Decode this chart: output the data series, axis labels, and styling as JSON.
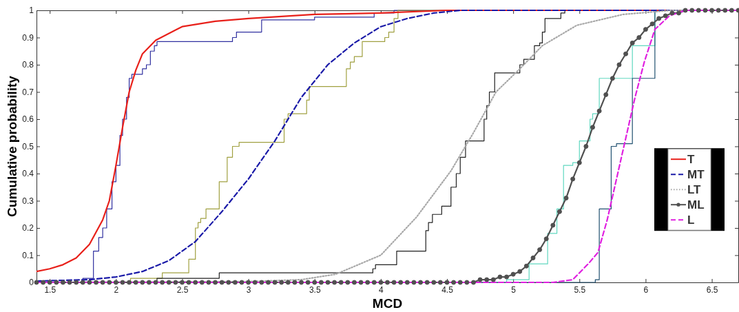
{
  "chart_data": {
    "type": "line",
    "xlabel": "MCD",
    "ylabel": "Cumulative probability",
    "xlim": [
      1.4,
      6.7
    ],
    "ylim": [
      0,
      1
    ],
    "xticks": [
      1.5,
      2,
      2.5,
      3,
      3.5,
      4,
      4.5,
      5,
      5.5,
      6,
      6.5
    ],
    "yticks": [
      0,
      0.1,
      0.2,
      0.3,
      0.4,
      0.5,
      0.6,
      0.7,
      0.8,
      0.9,
      1
    ],
    "legend": "right",
    "series": [
      {
        "type": "step",
        "color": "#3030a0",
        "x": [
          1.4,
          1.75,
          1.83,
          1.87,
          1.9,
          1.93,
          1.97,
          2.0,
          2.03,
          2.05,
          2.08,
          2.1,
          2.12,
          2.2,
          2.23,
          2.26,
          2.29,
          2.31,
          2.88,
          2.91,
          3.1,
          3.5,
          3.95,
          4.1,
          6.7
        ],
        "values": [
          0,
          0.015,
          0.115,
          0.165,
          0.2,
          0.27,
          0.37,
          0.43,
          0.54,
          0.6,
          0.68,
          0.75,
          0.765,
          0.785,
          0.8,
          0.85,
          0.87,
          0.885,
          0.9,
          0.92,
          0.965,
          0.975,
          0.99,
          1,
          1
        ]
      },
      {
        "type": "step",
        "color": "#a0a040",
        "x": [
          1.4,
          2.11,
          2.35,
          2.55,
          2.6,
          2.62,
          2.64,
          2.68,
          2.78,
          2.84,
          2.88,
          2.93,
          3.27,
          3.3,
          3.44,
          3.46,
          3.74,
          3.77,
          3.8,
          3.86,
          4.03,
          4.06,
          4.1,
          4.13,
          6.7
        ],
        "values": [
          0,
          0.015,
          0.035,
          0.085,
          0.2,
          0.22,
          0.235,
          0.27,
          0.37,
          0.46,
          0.5,
          0.515,
          0.6,
          0.62,
          0.67,
          0.72,
          0.785,
          0.81,
          0.83,
          0.885,
          0.9,
          0.92,
          0.97,
          1,
          1
        ]
      },
      {
        "type": "step",
        "color": "#202020",
        "x": [
          1.4,
          2.31,
          2.78,
          3.94,
          3.96,
          4.12,
          4.34,
          4.36,
          4.39,
          4.46,
          4.53,
          4.57,
          4.6,
          4.64,
          4.78,
          4.8,
          4.82,
          4.86,
          5.05,
          5.08,
          5.16,
          5.2,
          5.22,
          5.24,
          5.36,
          5.39,
          6.7
        ],
        "values": [
          0,
          0.015,
          0.035,
          0.05,
          0.065,
          0.115,
          0.19,
          0.22,
          0.25,
          0.28,
          0.35,
          0.4,
          0.46,
          0.52,
          0.6,
          0.65,
          0.7,
          0.77,
          0.8,
          0.82,
          0.87,
          0.88,
          0.92,
          0.97,
          0.99,
          1,
          1
        ]
      },
      {
        "type": "step",
        "color": "#60d8c0",
        "x": [
          1.4,
          4.95,
          5.12,
          5.26,
          5.33,
          5.38,
          5.45,
          5.5,
          5.58,
          5.6,
          5.65,
          5.9,
          6.07,
          6.7
        ],
        "values": [
          0,
          0.01,
          0.068,
          0.18,
          0.27,
          0.43,
          0.44,
          0.52,
          0.6,
          0.62,
          0.75,
          0.87,
          1,
          1
        ]
      },
      {
        "type": "step",
        "color": "#205070",
        "x": [
          1.4,
          5.62,
          5.65,
          5.74,
          5.78,
          5.9,
          6.07,
          6.7
        ],
        "values": [
          0,
          0.01,
          0.27,
          0.5,
          0.51,
          0.75,
          1,
          1
        ]
      },
      {
        "type": "line",
        "name": "T",
        "color": "#e8201a",
        "line_style": "solid",
        "x": [
          1.4,
          1.5,
          1.6,
          1.7,
          1.8,
          1.9,
          1.95,
          2.0,
          2.05,
          2.1,
          2.15,
          2.2,
          2.3,
          2.5,
          2.75,
          3.0,
          3.5,
          4.0,
          4.5,
          6.7
        ],
        "values": [
          0.04,
          0.05,
          0.065,
          0.09,
          0.14,
          0.23,
          0.3,
          0.43,
          0.57,
          0.7,
          0.78,
          0.84,
          0.89,
          0.94,
          0.96,
          0.97,
          0.985,
          0.99,
          1,
          1
        ]
      },
      {
        "type": "line",
        "name": "MT",
        "color": "#1a1aa8",
        "line_style": "dashed",
        "x": [
          1.4,
          1.8,
          2.0,
          2.2,
          2.4,
          2.6,
          2.8,
          3.0,
          3.2,
          3.4,
          3.6,
          3.8,
          4.0,
          4.2,
          4.4,
          4.6,
          6.7
        ],
        "values": [
          0.005,
          0.01,
          0.02,
          0.04,
          0.08,
          0.15,
          0.26,
          0.38,
          0.52,
          0.68,
          0.8,
          0.88,
          0.94,
          0.97,
          0.99,
          1,
          1
        ]
      },
      {
        "type": "line",
        "name": "LT",
        "color": "#a8a8a8",
        "line_style": "dotted",
        "x": [
          1.4,
          3.0,
          3.4,
          3.66,
          4.0,
          4.27,
          4.53,
          4.7,
          4.87,
          5.05,
          5.22,
          5.48,
          5.83,
          6.2,
          6.7
        ],
        "values": [
          0,
          0.003,
          0.01,
          0.03,
          0.1,
          0.24,
          0.41,
          0.55,
          0.7,
          0.785,
          0.87,
          0.945,
          0.985,
          1,
          1
        ]
      },
      {
        "type": "line",
        "name": "ML",
        "color": "#505050",
        "line_style": "solid",
        "marker": "circle",
        "x": [
          1.4,
          1.45,
          1.5,
          1.55,
          1.6,
          1.65,
          1.7,
          1.75,
          1.8,
          1.85,
          1.9,
          1.95,
          2.0,
          2.05,
          2.1,
          2.15,
          2.2,
          2.25,
          2.3,
          2.35,
          2.4,
          2.45,
          2.5,
          2.55,
          2.6,
          2.65,
          2.7,
          2.75,
          2.8,
          2.85,
          2.9,
          2.95,
          3.0,
          3.05,
          3.1,
          3.15,
          3.2,
          3.25,
          3.3,
          3.35,
          3.4,
          3.45,
          3.5,
          3.55,
          3.6,
          3.65,
          3.7,
          3.75,
          3.8,
          3.85,
          3.9,
          3.95,
          4.0,
          4.05,
          4.1,
          4.15,
          4.2,
          4.25,
          4.3,
          4.35,
          4.4,
          4.45,
          4.5,
          4.55,
          4.6,
          4.65,
          4.7,
          4.75,
          4.8,
          4.85,
          4.9,
          4.95,
          5.0,
          5.05,
          5.1,
          5.15,
          5.2,
          5.25,
          5.3,
          5.35,
          5.4,
          5.45,
          5.5,
          5.55,
          5.6,
          5.65,
          5.7,
          5.75,
          5.8,
          5.85,
          5.9,
          5.95,
          6.0,
          6.05,
          6.1,
          6.15,
          6.2,
          6.25,
          6.3,
          6.35,
          6.4,
          6.45,
          6.5,
          6.55,
          6.6,
          6.65,
          6.7
        ],
        "values": [
          0,
          0,
          0,
          0,
          0,
          0,
          0,
          0,
          0,
          0,
          0,
          0,
          0,
          0,
          0,
          0,
          0,
          0,
          0,
          0,
          0,
          0,
          0,
          0,
          0,
          0,
          0,
          0,
          0,
          0,
          0,
          0,
          0,
          0,
          0,
          0,
          0,
          0,
          0,
          0,
          0,
          0,
          0,
          0,
          0,
          0,
          0,
          0,
          0,
          0,
          0,
          0,
          0,
          0,
          0,
          0,
          0,
          0,
          0,
          0,
          0,
          0,
          0,
          0,
          0,
          0,
          0,
          0.01,
          0.01,
          0.01,
          0.02,
          0.02,
          0.03,
          0.04,
          0.06,
          0.09,
          0.12,
          0.16,
          0.21,
          0.26,
          0.31,
          0.38,
          0.44,
          0.5,
          0.57,
          0.63,
          0.69,
          0.75,
          0.8,
          0.84,
          0.88,
          0.9,
          0.93,
          0.95,
          0.97,
          0.98,
          0.99,
          0.99,
          1,
          1,
          1,
          1,
          1,
          1,
          1,
          1,
          1
        ]
      },
      {
        "type": "line",
        "name": "L",
        "color": "#e020e0",
        "line_style": "dashed",
        "x": [
          1.4,
          5.3,
          5.45,
          5.57,
          5.64,
          5.71,
          5.78,
          5.85,
          5.92,
          5.99,
          6.07,
          6.18,
          6.3,
          6.7
        ],
        "values": [
          0,
          0,
          0.01,
          0.07,
          0.11,
          0.23,
          0.38,
          0.53,
          0.68,
          0.81,
          0.93,
          0.98,
          1,
          1
        ]
      }
    ]
  }
}
